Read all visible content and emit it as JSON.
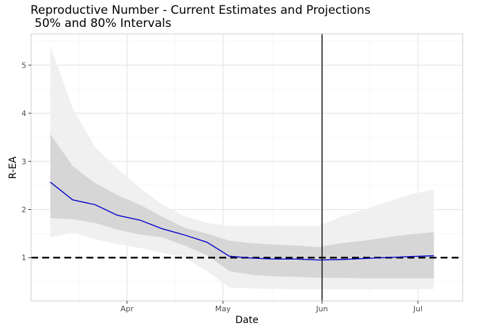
{
  "chart_data": {
    "type": "line",
    "title": "Reproductive Number - Current Estimates and Projections",
    "subtitle": "50% and 80% Intervals",
    "xlabel": "Date",
    "ylabel": "R-EA",
    "x_range": [
      "2020-03-02",
      "2020-07-15"
    ],
    "ylim": [
      0.1,
      5.65
    ],
    "x_ticks": [
      {
        "date": "2020-04-01",
        "label": "Apr"
      },
      {
        "date": "2020-05-01",
        "label": "May"
      },
      {
        "date": "2020-06-01",
        "label": "Jun"
      },
      {
        "date": "2020-07-01",
        "label": "Jul"
      }
    ],
    "y_ticks": [
      1,
      2,
      3,
      4,
      5
    ],
    "grid": true,
    "legend": "none",
    "reference_line": {
      "y": 1,
      "style": "dashed",
      "color": "#000000"
    },
    "vertical_line": {
      "date": "2020-06-01",
      "color": "#000000"
    },
    "colors": {
      "line": "#0000cc",
      "band_80": "#f0f0f0",
      "band_50": "#d6d6d6",
      "panel_border": "#cccccc",
      "grid_major": "#e3e3e3",
      "grid_minor": "#f2f2f2"
    },
    "series": [
      {
        "x": [
          "2020-03-08",
          "2020-03-15",
          "2020-03-22",
          "2020-03-29",
          "2020-04-05",
          "2020-04-12",
          "2020-04-19",
          "2020-04-26",
          "2020-05-03",
          "2020-05-10",
          "2020-05-17",
          "2020-05-24",
          "2020-05-31",
          "2020-06-07",
          "2020-06-14",
          "2020-06-21",
          "2020-06-28",
          "2020-07-06"
        ],
        "y": [
          2.57,
          2.2,
          2.1,
          1.88,
          1.78,
          1.6,
          1.47,
          1.32,
          1.03,
          0.99,
          0.97,
          0.97,
          0.95,
          0.96,
          0.98,
          1.0,
          1.02,
          1.04
        ],
        "band_50_lower": [
          1.82,
          1.8,
          1.72,
          1.58,
          1.48,
          1.42,
          1.25,
          1.05,
          0.72,
          0.64,
          0.61,
          0.6,
          0.58,
          0.58,
          0.57,
          0.57,
          0.57,
          0.57
        ],
        "band_50_upper": [
          3.57,
          2.9,
          2.55,
          2.3,
          2.1,
          1.85,
          1.62,
          1.5,
          1.35,
          1.3,
          1.27,
          1.25,
          1.22,
          1.3,
          1.35,
          1.42,
          1.48,
          1.53
        ],
        "band_80_lower": [
          1.42,
          1.52,
          1.38,
          1.28,
          1.2,
          1.1,
          1.0,
          0.72,
          0.38,
          0.36,
          0.35,
          0.34,
          0.34,
          0.34,
          0.34,
          0.34,
          0.34,
          0.35
        ],
        "band_80_upper": [
          5.4,
          4.1,
          3.3,
          2.85,
          2.45,
          2.1,
          1.86,
          1.72,
          1.66,
          1.66,
          1.66,
          1.66,
          1.66,
          1.85,
          2.0,
          2.15,
          2.3,
          2.42
        ]
      }
    ]
  }
}
